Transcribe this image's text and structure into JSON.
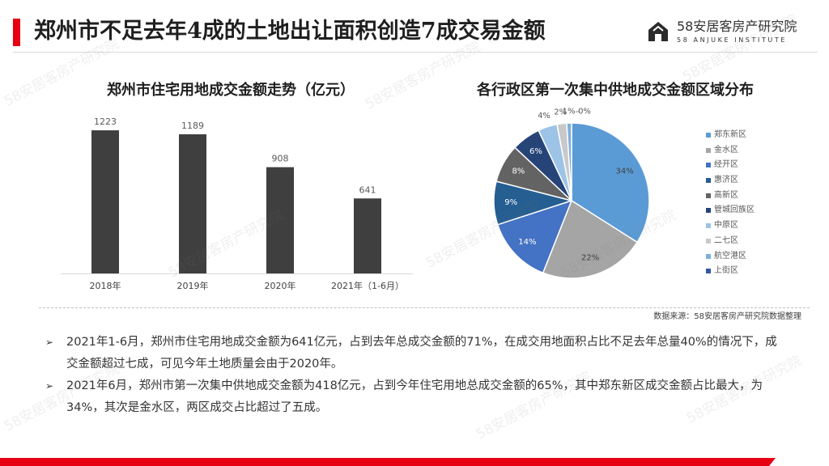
{
  "slide": {
    "title": "郑州市不足去年4成的土地出让面积创造7成交易金额",
    "brand": {
      "name": "58安居客房产研究院",
      "subtitle": "58 ANJUKE INSTITUTE",
      "icon": "anjuke-house-icon"
    },
    "watermark": "58安居客房产研究院",
    "source": "数据来源：58安居客房产研究院数据整理",
    "bullet_icon": "➢",
    "bullets": [
      "2021年1-6月，郑州市住宅用地成交金额为641亿元，占到去年总成交金额的71%，在成交用地面积占比不足去年总量40%的情况下，成交金额超过七成，可见今年土地质量会由于2020年。",
      "2021年6月，郑州市第一次集中供地成交金额为418亿元，占到今年住宅用地总成交金额的65%，其中郑东新区成交金额占比最大，为34%，其次是金水区，两区成交占比超过了五成。"
    ],
    "colors": {
      "accent_red": "#e60012",
      "title_text": "#1f1f1f",
      "body_text": "#333333"
    }
  },
  "chart_data": [
    {
      "type": "bar",
      "title": "郑州市住宅用地成交金额走势（亿元）",
      "categories": [
        "2018年",
        "2019年",
        "2020年",
        "2021年（1-6月）"
      ],
      "values": [
        1223,
        1189,
        908,
        641
      ],
      "xlabel": "",
      "ylabel": "",
      "ylim": [
        0,
        1500
      ],
      "bar_color": "#3f3f3f",
      "grid": false,
      "legend": "none"
    },
    {
      "type": "pie",
      "title": "各行政区第一次集中供地成交金额区域分布",
      "labels": [
        "郑东新区",
        "金水区",
        "经开区",
        "惠济区",
        "高新区",
        "管城回族区",
        "中原区",
        "二七区",
        "航空港区",
        "上街区"
      ],
      "values": [
        34,
        22,
        14,
        9,
        8,
        6,
        4,
        2,
        1,
        0
      ],
      "value_labels": [
        "34%",
        "22%",
        "14%",
        "9%",
        "8%",
        "6%",
        "4%",
        "2%",
        "1%",
        "0%"
      ],
      "colors": [
        "#5b9bd5",
        "#a5a5a5",
        "#4472c4",
        "#255e91",
        "#636363",
        "#264478",
        "#9dc3e6",
        "#c9c9c9",
        "#7cafdd",
        "#335aa1"
      ],
      "start": "top",
      "direction": "clockwise",
      "legend": "right"
    }
  ]
}
